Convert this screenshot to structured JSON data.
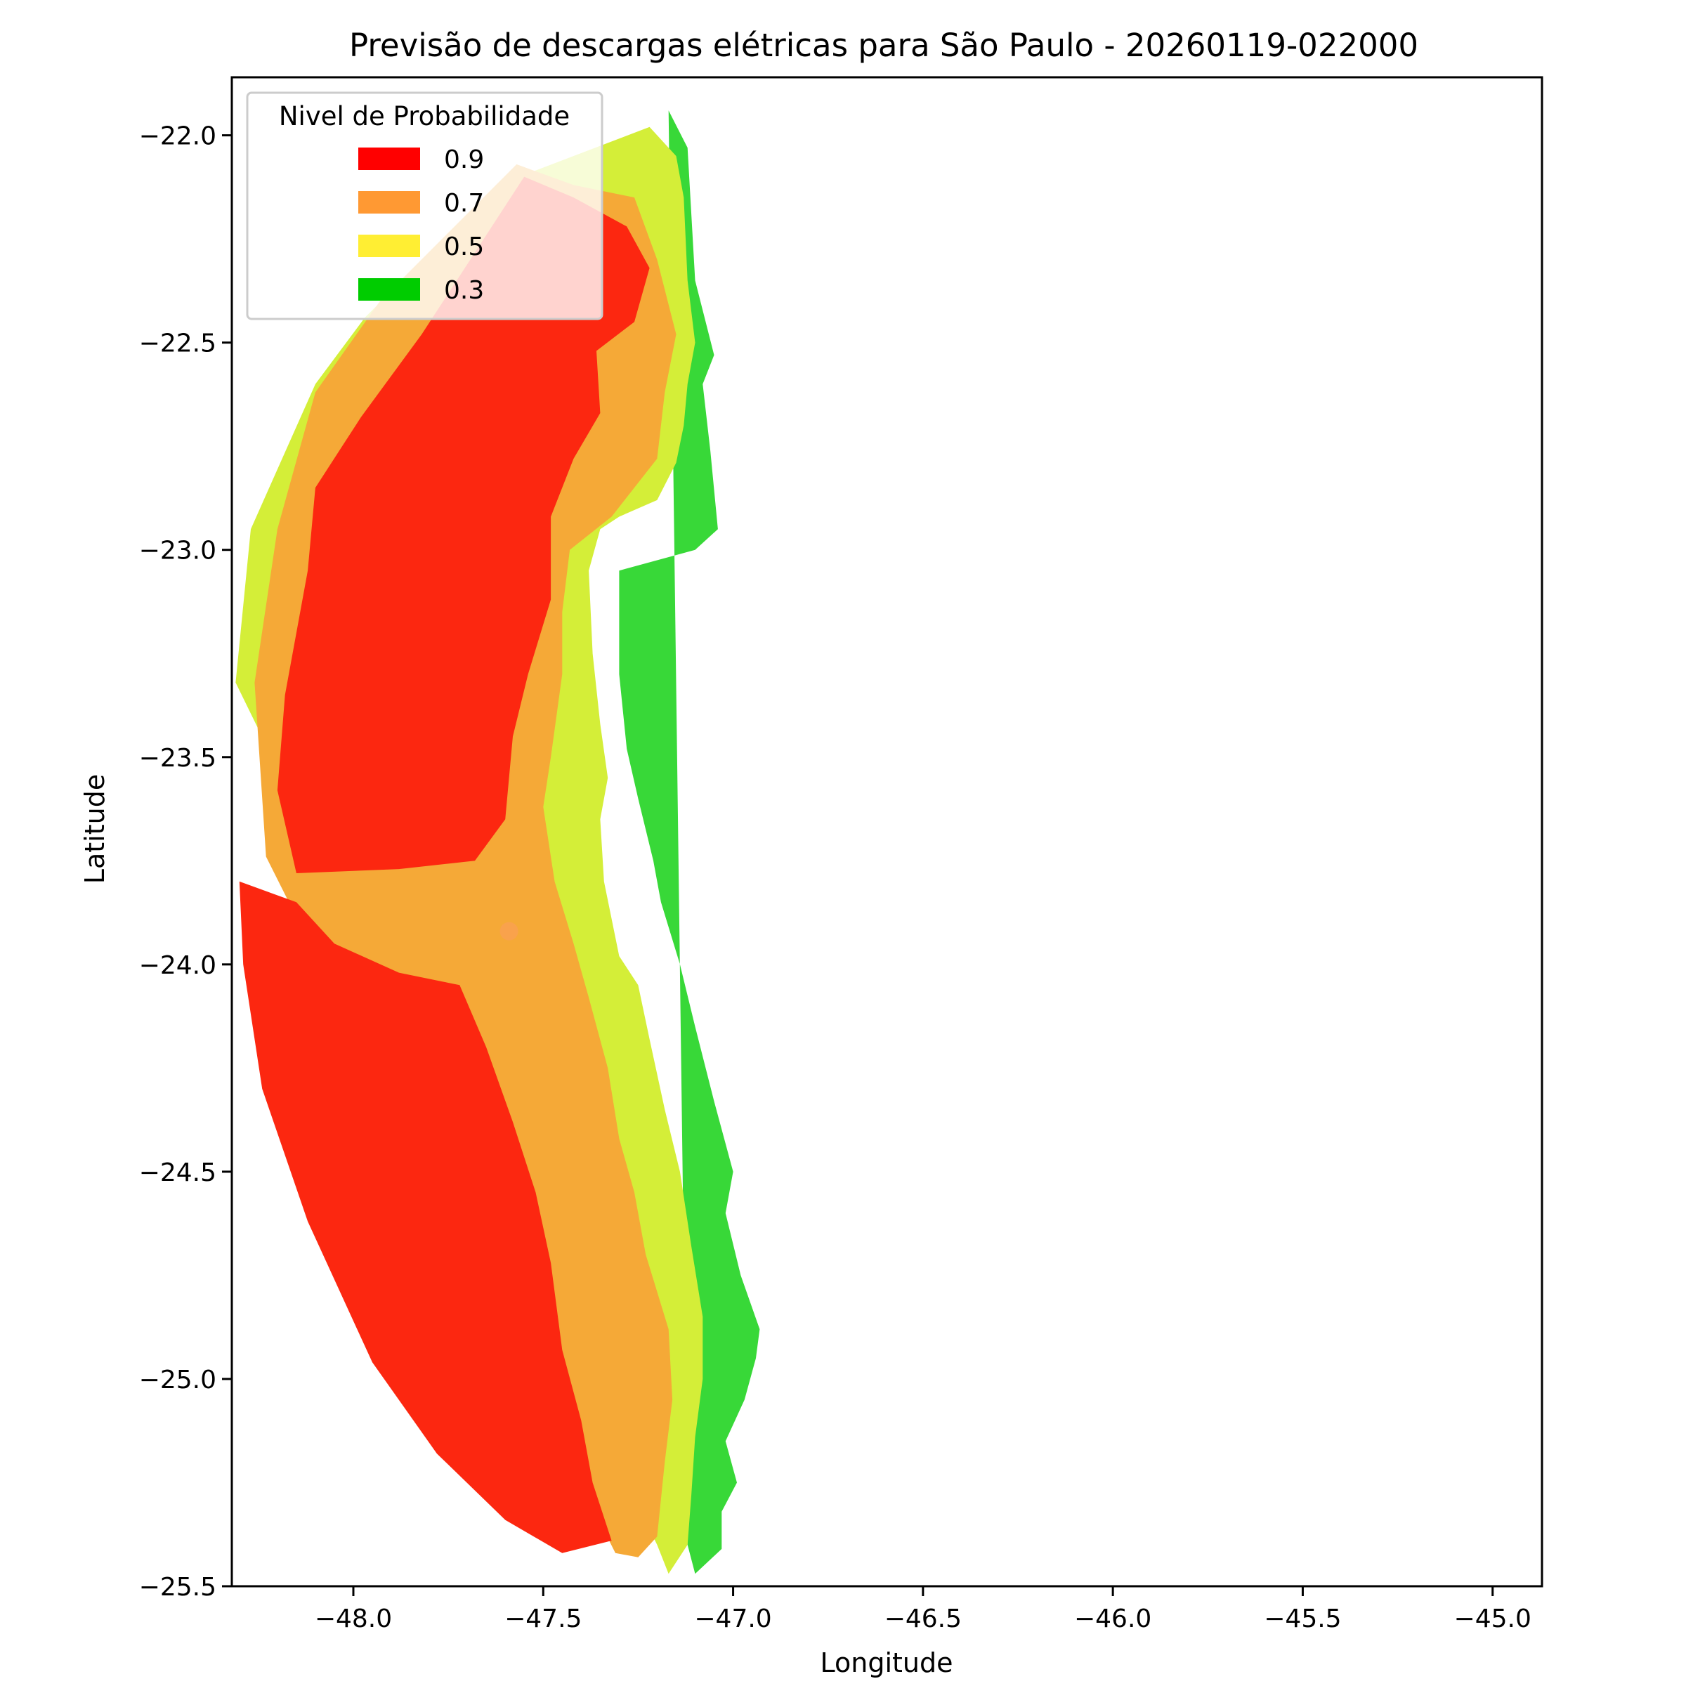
{
  "chart_data": {
    "type": "heatmap",
    "title": "Previsão de descargas elétricas para São Paulo - 20260119-022000",
    "xlabel": "Longitude",
    "ylabel": "Latitude",
    "xlim": [
      -48.32,
      -44.87
    ],
    "ylim": [
      -25.5,
      -21.86
    ],
    "x_ticks": [
      -48.0,
      -47.5,
      -47.0,
      -46.5,
      -46.0,
      -45.5,
      -45.0
    ],
    "x_tick_labels": [
      "−48.0",
      "−47.5",
      "−47.0",
      "−46.5",
      "−46.0",
      "−45.5",
      "−45.0"
    ],
    "y_ticks": [
      -22.0,
      -22.5,
      -23.0,
      -23.5,
      -24.0,
      -24.5,
      -25.0,
      -25.5
    ],
    "y_tick_labels": [
      "−22.0",
      "−22.5",
      "−23.0",
      "−23.5",
      "−24.0",
      "−24.5",
      "−25.0",
      "−25.5"
    ],
    "grid": false,
    "legend": {
      "title": "Nivel de Probabilidade",
      "placement": "top-left",
      "entries": [
        {
          "label": "0.9",
          "color": "#ff0000"
        },
        {
          "label": "0.7",
          "color": "#ff9933"
        },
        {
          "label": "0.5",
          "color": "#ffee33"
        },
        {
          "label": "0.3",
          "color": "#00cc00"
        }
      ]
    },
    "series": [
      {
        "level": 0.3,
        "color": "#38d838",
        "polygon": [
          [
            -47.17,
            -21.94
          ],
          [
            -47.12,
            -22.03
          ],
          [
            -47.1,
            -22.35
          ],
          [
            -47.05,
            -22.53
          ],
          [
            -47.08,
            -22.6
          ],
          [
            -47.06,
            -22.76
          ],
          [
            -47.04,
            -22.95
          ],
          [
            -47.1,
            -23.0
          ],
          [
            -47.3,
            -23.05
          ],
          [
            -47.3,
            -23.3
          ],
          [
            -47.28,
            -23.48
          ],
          [
            -47.25,
            -23.6
          ],
          [
            -47.21,
            -23.75
          ],
          [
            -47.19,
            -23.85
          ],
          [
            -47.14,
            -24.0
          ],
          [
            -47.1,
            -24.15
          ],
          [
            -47.05,
            -24.33
          ],
          [
            -47.0,
            -24.5
          ],
          [
            -47.02,
            -24.6
          ],
          [
            -46.98,
            -24.75
          ],
          [
            -46.93,
            -24.88
          ],
          [
            -46.94,
            -24.95
          ],
          [
            -46.97,
            -25.05
          ],
          [
            -47.02,
            -25.15
          ],
          [
            -46.99,
            -25.25
          ],
          [
            -47.03,
            -25.32
          ],
          [
            -47.03,
            -25.41
          ],
          [
            -47.1,
            -25.47
          ],
          [
            -47.12,
            -25.4
          ]
        ]
      },
      {
        "level": 0.5,
        "color": "#d4ee38",
        "polygon": [
          [
            -47.22,
            -21.98
          ],
          [
            -47.15,
            -22.05
          ],
          [
            -47.13,
            -22.15
          ],
          [
            -47.12,
            -22.35
          ],
          [
            -47.1,
            -22.5
          ],
          [
            -47.12,
            -22.6
          ],
          [
            -47.13,
            -22.7
          ],
          [
            -47.15,
            -22.79
          ],
          [
            -47.2,
            -22.88
          ],
          [
            -47.3,
            -22.92
          ],
          [
            -47.35,
            -22.95
          ],
          [
            -47.38,
            -23.05
          ],
          [
            -47.37,
            -23.25
          ],
          [
            -47.35,
            -23.42
          ],
          [
            -47.33,
            -23.55
          ],
          [
            -47.35,
            -23.65
          ],
          [
            -47.34,
            -23.8
          ],
          [
            -47.3,
            -23.98
          ],
          [
            -47.25,
            -24.05
          ],
          [
            -47.22,
            -24.18
          ],
          [
            -47.18,
            -24.35
          ],
          [
            -47.14,
            -24.5
          ],
          [
            -47.11,
            -24.68
          ],
          [
            -47.08,
            -24.85
          ],
          [
            -47.08,
            -25.0
          ],
          [
            -47.1,
            -25.14
          ],
          [
            -47.11,
            -25.28
          ],
          [
            -47.12,
            -25.4
          ],
          [
            -47.17,
            -25.47
          ],
          [
            -47.2,
            -25.4
          ],
          [
            -48.31,
            -23.32
          ],
          [
            -48.27,
            -22.95
          ],
          [
            -48.1,
            -22.6
          ],
          [
            -47.97,
            -22.44
          ],
          [
            -47.62,
            -22.12
          ]
        ]
      },
      {
        "level": 0.7,
        "color": "#f5a937",
        "polygon": [
          [
            -47.57,
            -22.07
          ],
          [
            -47.42,
            -22.12
          ],
          [
            -47.26,
            -22.15
          ],
          [
            -47.2,
            -22.3
          ],
          [
            -47.15,
            -22.48
          ],
          [
            -47.18,
            -22.62
          ],
          [
            -47.2,
            -22.78
          ],
          [
            -47.32,
            -22.92
          ],
          [
            -47.43,
            -23.0
          ],
          [
            -47.45,
            -23.15
          ],
          [
            -47.45,
            -23.3
          ],
          [
            -47.48,
            -23.5
          ],
          [
            -47.5,
            -23.62
          ],
          [
            -47.47,
            -23.8
          ],
          [
            -47.42,
            -23.95
          ],
          [
            -47.38,
            -24.08
          ],
          [
            -47.33,
            -24.25
          ],
          [
            -47.3,
            -24.42
          ],
          [
            -47.26,
            -24.55
          ],
          [
            -47.23,
            -24.7
          ],
          [
            -47.17,
            -24.88
          ],
          [
            -47.16,
            -25.05
          ],
          [
            -47.18,
            -25.2
          ],
          [
            -47.2,
            -25.38
          ],
          [
            -47.25,
            -25.43
          ],
          [
            -47.31,
            -25.42
          ],
          [
            -48.23,
            -23.74
          ],
          [
            -48.26,
            -23.32
          ],
          [
            -48.2,
            -22.95
          ],
          [
            -48.1,
            -22.62
          ],
          [
            -47.93,
            -22.4
          ]
        ]
      },
      {
        "level": 0.9,
        "color": "#fc2710",
        "polygon": [
          [
            -47.55,
            -22.1
          ],
          [
            -47.42,
            -22.15
          ],
          [
            -47.28,
            -22.22
          ],
          [
            -47.22,
            -22.32
          ],
          [
            -47.26,
            -22.45
          ],
          [
            -47.36,
            -22.52
          ],
          [
            -47.35,
            -22.67
          ],
          [
            -47.42,
            -22.78
          ],
          [
            -47.48,
            -22.92
          ],
          [
            -47.48,
            -23.12
          ],
          [
            -47.54,
            -23.3
          ],
          [
            -47.58,
            -23.45
          ],
          [
            -47.6,
            -23.65
          ],
          [
            -47.68,
            -23.75
          ],
          [
            -47.88,
            -23.77
          ],
          [
            -48.15,
            -23.78
          ],
          [
            -48.2,
            -23.58
          ],
          [
            -48.18,
            -23.35
          ],
          [
            -48.12,
            -23.05
          ],
          [
            -48.1,
            -22.85
          ],
          [
            -47.98,
            -22.68
          ],
          [
            -47.82,
            -22.48
          ]
        ]
      },
      {
        "level": 0.9,
        "color": "#fc2710",
        "polygon": [
          [
            -48.3,
            -23.8
          ],
          [
            -48.29,
            -24.0
          ],
          [
            -48.24,
            -24.3
          ],
          [
            -48.12,
            -24.62
          ],
          [
            -47.95,
            -24.96
          ],
          [
            -47.78,
            -25.18
          ],
          [
            -47.6,
            -25.34
          ],
          [
            -47.45,
            -25.42
          ],
          [
            -47.32,
            -25.39
          ],
          [
            -47.37,
            -25.25
          ],
          [
            -47.4,
            -25.1
          ],
          [
            -47.45,
            -24.93
          ],
          [
            -47.48,
            -24.72
          ],
          [
            -47.52,
            -24.55
          ],
          [
            -47.58,
            -24.38
          ],
          [
            -47.65,
            -24.2
          ],
          [
            -47.72,
            -24.05
          ],
          [
            -47.88,
            -24.02
          ],
          [
            -48.05,
            -23.95
          ],
          [
            -48.15,
            -23.85
          ]
        ]
      }
    ],
    "marker": {
      "x": -47.59,
      "y": -23.92,
      "color": "#f9a24c"
    }
  }
}
